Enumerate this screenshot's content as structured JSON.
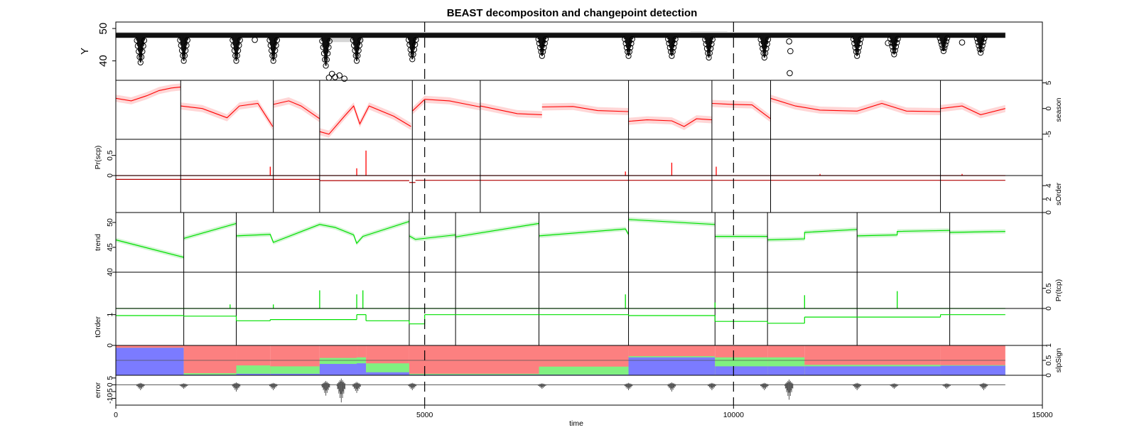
{
  "chart_data": {
    "type": "line",
    "title": "BEAST decompositon and changepoint detection",
    "xlabel": "time",
    "xlim": [
      0,
      15000
    ],
    "xticks": [
      "0",
      "5000",
      "10000",
      "15000"
    ],
    "x_ticks_values": [
      0,
      5000,
      10000,
      15000
    ],
    "data_range": [
      0,
      14400
    ],
    "vertical_dashed_lines": [
      5000,
      10000
    ],
    "colors": {
      "observed": "#000000",
      "season": "#ff0000",
      "season_band": "#ffd6d6",
      "trend": "#00e000",
      "trend_band": "#d2f5d2",
      "slp_neg": "#7b7bff",
      "slp_zero": "#80f080",
      "slp_pos": "#fc8080",
      "error": "#555555"
    },
    "panels": {
      "Y": {
        "ylabel": "Y",
        "yticks": [
          "50",
          "40"
        ],
        "ylim": [
          34,
          52
        ],
        "baseline": 48,
        "dips": [
          {
            "x": 400,
            "min": 39.5
          },
          {
            "x": 1100,
            "min": 40
          },
          {
            "x": 1950,
            "min": 40
          },
          {
            "x": 2550,
            "min": 40
          },
          {
            "x": 3400,
            "min": 38.5
          },
          {
            "x": 3900,
            "min": 40
          },
          {
            "x": 4800,
            "min": 40.5
          },
          {
            "x": 6900,
            "min": 41.5
          },
          {
            "x": 8300,
            "min": 41.5
          },
          {
            "x": 9000,
            "min": 41.5
          },
          {
            "x": 9600,
            "min": 41
          },
          {
            "x": 10500,
            "min": 41
          },
          {
            "x": 12000,
            "min": 41.5
          },
          {
            "x": 12600,
            "min": 42
          },
          {
            "x": 13400,
            "min": 43
          },
          {
            "x": 14000,
            "min": 42.5
          }
        ],
        "outliers": [
          {
            "x": 2250,
            "y": 46.5
          },
          {
            "x": 3500,
            "y": 36
          },
          {
            "x": 3550,
            "y": 35
          },
          {
            "x": 3620,
            "y": 35.5
          },
          {
            "x": 3700,
            "y": 34.5
          },
          {
            "x": 3450,
            "y": 34.8
          },
          {
            "x": 10900,
            "y": 46
          },
          {
            "x": 10920,
            "y": 43
          },
          {
            "x": 10910,
            "y": 36.2
          },
          {
            "x": 12500,
            "y": 45.5
          },
          {
            "x": 13700,
            "y": 45.7
          }
        ]
      },
      "season": {
        "ylabel": "season",
        "yticks": [
          "5",
          "0",
          "-5"
        ],
        "ylim": [
          -6,
          5.5
        ],
        "changepoints": [
          1050,
          2550,
          3300,
          4800,
          5900,
          8300,
          9650,
          10600,
          13350
        ],
        "segments": [
          {
            "x": [
              0,
              250,
              500,
              700,
              900,
              1050
            ],
            "y": [
              2,
              1.5,
              2.5,
              3.5,
              4,
              4.2
            ]
          },
          {
            "x": [
              1050,
              1400,
              1800,
              2000,
              2300,
              2540
            ],
            "y": [
              0.5,
              0,
              -1.8,
              0.5,
              1,
              -3.5
            ]
          },
          {
            "x": [
              2550,
              2800,
              3000,
              3300
            ],
            "y": [
              0.8,
              1.5,
              0.5,
              -2
            ]
          },
          {
            "x": [
              3300,
              3450,
              3700,
              3850,
              3950,
              4100,
              4500,
              4780
            ],
            "y": [
              -4.5,
              -5,
              -1.5,
              0.5,
              -3,
              0.5,
              -1.5,
              -3.5
            ]
          },
          {
            "x": [
              4800,
              5000,
              5400,
              5900
            ],
            "y": [
              -0.5,
              1.8,
              1.5,
              0.3
            ]
          },
          {
            "x": [
              5900,
              6500,
              6900
            ],
            "y": [
              0.5,
              -1,
              -1.2
            ]
          },
          {
            "x": [
              6900,
              7400,
              7800,
              8300
            ],
            "y": [
              0.3,
              0.4,
              -0.4,
              -0.6
            ]
          },
          {
            "x": [
              8300,
              8600,
              9000,
              9200,
              9400,
              9650
            ],
            "y": [
              -2.5,
              -2.2,
              -2.4,
              -3.5,
              -2,
              -2.2
            ]
          },
          {
            "x": [
              9650,
              10000,
              10300,
              10600
            ],
            "y": [
              1,
              0.8,
              0.7,
              -2
            ]
          },
          {
            "x": [
              10600,
              11000,
              11400,
              12000,
              12400,
              12800,
              13350
            ],
            "y": [
              2,
              0.5,
              -0.3,
              -0.5,
              1,
              -0.5,
              -0.6
            ]
          },
          {
            "x": [
              13350,
              13700,
              14000,
              14400
            ],
            "y": [
              0,
              0.5,
              -1.2,
              0
            ]
          }
        ]
      },
      "Pr(scp)": {
        "ylabel": "Pr(scp)",
        "yticks": [
          "0.5",
          "0"
        ],
        "ylim": [
          0,
          0.9
        ],
        "spikes": [
          {
            "x": 2500,
            "y": 0.22
          },
          {
            "x": 3900,
            "y": 0.18
          },
          {
            "x": 4050,
            "y": 0.62
          },
          {
            "x": 8250,
            "y": 0.1
          },
          {
            "x": 9000,
            "y": 0.32
          },
          {
            "x": 9720,
            "y": 0.22
          },
          {
            "x": 11400,
            "y": 0.04
          },
          {
            "x": 13700,
            "y": 0.04
          }
        ]
      },
      "sOrder": {
        "ylabel": "sOrder",
        "yticks": [
          "4",
          "2",
          "0"
        ],
        "ylim": [
          0,
          5.5
        ],
        "steps": [
          {
            "x0": 0,
            "x1": 3300,
            "y": 5
          },
          {
            "x0": 3300,
            "x1": 4750,
            "y": 4.8
          },
          {
            "x0": 4750,
            "x1": 4850,
            "y": 4.5
          },
          {
            "x0": 4850,
            "x1": 14400,
            "y": 4.85
          }
        ]
      },
      "trend": {
        "ylabel": "trend",
        "yticks": [
          "50",
          "45",
          "40"
        ],
        "ylim": [
          40,
          52
        ],
        "changepoints": [
          1100,
          1950,
          4750,
          5500,
          6850,
          8300,
          9700,
          10550,
          12000,
          13500
        ],
        "segments": [
          {
            "x": [
              0,
              1100
            ],
            "y": [
              46.5,
              43
            ]
          },
          {
            "x": [
              1100,
              1950
            ],
            "y": [
              46.8,
              49.8
            ]
          },
          {
            "x": [
              1950,
              2500,
              2550,
              3300,
              3550,
              3850,
              3900,
              4000,
              4750
            ],
            "y": [
              47.3,
              47.6,
              46,
              49.6,
              49,
              47.5,
              45.8,
              47.2,
              50.2
            ]
          },
          {
            "x": [
              4750,
              4850,
              5500
            ],
            "y": [
              47.3,
              46.6,
              47.5
            ]
          },
          {
            "x": [
              5500,
              6850
            ],
            "y": [
              47.1,
              49.8
            ]
          },
          {
            "x": [
              6850,
              8250,
              8300
            ],
            "y": [
              47.3,
              48.7,
              47.6
            ]
          },
          {
            "x": [
              8300,
              9700
            ],
            "y": [
              50.6,
              49.6
            ]
          },
          {
            "x": [
              9700,
              10550
            ],
            "y": [
              47.2,
              47.2
            ]
          },
          {
            "x": [
              10550,
              11150,
              11150,
              12000
            ],
            "y": [
              46.5,
              46.7,
              48,
              48.6
            ]
          },
          {
            "x": [
              12000,
              12650,
              12650,
              13500
            ],
            "y": [
              47.3,
              47.5,
              48.2,
              48.4
            ]
          },
          {
            "x": [
              13500,
              14400
            ],
            "y": [
              48,
              48.2
            ]
          }
        ]
      },
      "Pr(tcp)": {
        "ylabel": "Pr(tcp)",
        "yticks": [
          "0.5",
          "0"
        ],
        "ylim": [
          0,
          0.9
        ],
        "spikes": [
          {
            "x": 1850,
            "y": 0.1
          },
          {
            "x": 2550,
            "y": 0.1
          },
          {
            "x": 3300,
            "y": 0.45
          },
          {
            "x": 3900,
            "y": 0.35
          },
          {
            "x": 4000,
            "y": 0.45
          },
          {
            "x": 8250,
            "y": 0.35
          },
          {
            "x": 9700,
            "y": 0.15
          },
          {
            "x": 11150,
            "y": 0.33
          },
          {
            "x": 12650,
            "y": 0.43
          }
        ]
      },
      "tOrder": {
        "ylabel": "tOrder",
        "yticks": [
          "1",
          "0"
        ],
        "ylim": [
          0,
          1.2
        ],
        "steps": [
          {
            "x0": 0,
            "x1": 1100,
            "y": 0.97
          },
          {
            "x0": 1100,
            "x1": 1950,
            "y": 0.95
          },
          {
            "x0": 1950,
            "x1": 2500,
            "y": 0.8
          },
          {
            "x0": 2500,
            "x1": 3900,
            "y": 0.84
          },
          {
            "x0": 3900,
            "x1": 4050,
            "y": 1.0
          },
          {
            "x0": 4050,
            "x1": 4750,
            "y": 0.8
          },
          {
            "x0": 4750,
            "x1": 5000,
            "y": 0.7
          },
          {
            "x0": 5000,
            "x1": 8300,
            "y": 1.0
          },
          {
            "x0": 8300,
            "x1": 9700,
            "y": 0.97
          },
          {
            "x0": 9700,
            "x1": 10550,
            "y": 0.78
          },
          {
            "x0": 10550,
            "x1": 11150,
            "y": 0.72
          },
          {
            "x0": 11150,
            "x1": 13350,
            "y": 0.92
          },
          {
            "x0": 13350,
            "x1": 14400,
            "y": 1.0
          }
        ]
      },
      "slpSign": {
        "ylabel": "slpSign",
        "yticks": [
          "1",
          "0.5",
          "0"
        ],
        "ylim": [
          0,
          1
        ],
        "segments": [
          {
            "x0": 0,
            "x1": 1100,
            "neg": 0.92,
            "zero": 0.0
          },
          {
            "x0": 1100,
            "x1": 1950,
            "neg": 0.02,
            "zero": 0.05
          },
          {
            "x0": 1950,
            "x1": 2500,
            "neg": 0.05,
            "zero": 0.28
          },
          {
            "x0": 2500,
            "x1": 3300,
            "neg": 0.05,
            "zero": 0.25
          },
          {
            "x0": 3300,
            "x1": 3900,
            "neg": 0.38,
            "zero": 0.2
          },
          {
            "x0": 3900,
            "x1": 4050,
            "neg": 0.4,
            "zero": 0.2
          },
          {
            "x0": 4050,
            "x1": 4750,
            "neg": 0.1,
            "zero": 0.3
          },
          {
            "x0": 4750,
            "x1": 6850,
            "neg": 0.02,
            "zero": 0.03
          },
          {
            "x0": 6850,
            "x1": 8300,
            "neg": 0.02,
            "zero": 0.27
          },
          {
            "x0": 8300,
            "x1": 9700,
            "neg": 0.6,
            "zero": 0.04
          },
          {
            "x0": 9700,
            "x1": 10550,
            "neg": 0.3,
            "zero": 0.3
          },
          {
            "x0": 10550,
            "x1": 11150,
            "neg": 0.3,
            "zero": 0.3
          },
          {
            "x0": 11150,
            "x1": 13350,
            "neg": 0.3,
            "zero": 0.05
          },
          {
            "x0": 13350,
            "x1": 14400,
            "neg": 0.32,
            "zero": 0.02
          }
        ]
      },
      "error": {
        "ylabel": "error",
        "yticks": [
          "5",
          "0",
          "-5",
          "-10"
        ],
        "ylim": [
          -15,
          7
        ],
        "bursts": [
          {
            "x": 400,
            "amp": 4
          },
          {
            "x": 1100,
            "amp": 3
          },
          {
            "x": 1950,
            "amp": 5
          },
          {
            "x": 2550,
            "amp": 4
          },
          {
            "x": 3400,
            "amp": 8
          },
          {
            "x": 3650,
            "amp": 13
          },
          {
            "x": 3900,
            "amp": 6
          },
          {
            "x": 4800,
            "amp": 4
          },
          {
            "x": 6900,
            "amp": 3
          },
          {
            "x": 8300,
            "amp": 4
          },
          {
            "x": 9000,
            "amp": 5
          },
          {
            "x": 9650,
            "amp": 4
          },
          {
            "x": 10500,
            "amp": 4
          },
          {
            "x": 10900,
            "amp": 11
          },
          {
            "x": 12000,
            "amp": 4
          },
          {
            "x": 12600,
            "amp": 3
          },
          {
            "x": 13450,
            "amp": 3
          },
          {
            "x": 14050,
            "amp": 4
          }
        ]
      }
    }
  }
}
